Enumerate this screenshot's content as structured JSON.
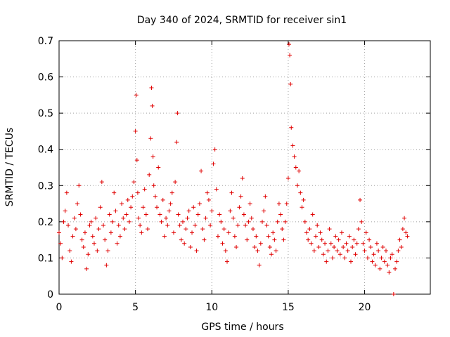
{
  "chart_data": {
    "type": "scatter",
    "title": "Day 340 of 2024, SRMTID for receiver sin1",
    "xlabel": "GPS time / hours",
    "ylabel": "SRMTID / TECUs",
    "xlim": [
      0,
      24.3
    ],
    "ylim": [
      0,
      0.7
    ],
    "x_ticks": [
      0,
      5,
      10,
      15,
      20
    ],
    "x_tick_labels": [
      "0",
      "5",
      "10",
      "15",
      "20"
    ],
    "y_ticks": [
      0,
      0.1,
      0.2,
      0.3,
      0.4,
      0.5,
      0.6,
      0.7
    ],
    "y_tick_labels": [
      "0",
      "0.1",
      "0.2",
      "0.3",
      "0.4",
      "0.5",
      "0.6",
      "0.7"
    ],
    "grid": true,
    "marker": "+",
    "color": "#e00000",
    "series": [
      {
        "name": "SRMTID",
        "x": [
          0.0,
          0.1,
          0.2,
          0.3,
          0.4,
          0.5,
          0.6,
          0.7,
          0.8,
          0.9,
          1.0,
          1.1,
          1.2,
          1.3,
          1.4,
          1.5,
          1.6,
          1.7,
          1.8,
          1.9,
          2.0,
          2.1,
          2.2,
          2.3,
          2.4,
          2.5,
          2.6,
          2.7,
          2.8,
          2.9,
          3.0,
          3.1,
          3.2,
          3.3,
          3.4,
          3.5,
          3.6,
          3.7,
          3.8,
          3.9,
          4.0,
          4.1,
          4.2,
          4.3,
          4.4,
          4.5,
          4.6,
          4.7,
          4.8,
          4.9,
          5.0,
          5.05,
          5.1,
          5.15,
          5.2,
          5.3,
          5.4,
          5.5,
          5.6,
          5.7,
          5.8,
          5.9,
          6.0,
          6.05,
          6.1,
          6.15,
          6.2,
          6.3,
          6.4,
          6.5,
          6.6,
          6.7,
          6.8,
          6.9,
          7.0,
          7.1,
          7.2,
          7.3,
          7.4,
          7.5,
          7.6,
          7.7,
          7.75,
          7.8,
          7.9,
          8.0,
          8.1,
          8.2,
          8.3,
          8.4,
          8.5,
          8.6,
          8.7,
          8.8,
          8.9,
          9.0,
          9.1,
          9.2,
          9.3,
          9.4,
          9.5,
          9.6,
          9.7,
          9.8,
          9.9,
          10.0,
          10.1,
          10.2,
          10.3,
          10.4,
          10.5,
          10.6,
          10.7,
          10.8,
          10.9,
          11.0,
          11.1,
          11.2,
          11.3,
          11.4,
          11.5,
          11.6,
          11.7,
          11.8,
          11.9,
          12.0,
          12.1,
          12.2,
          12.3,
          12.4,
          12.5,
          12.6,
          12.7,
          12.8,
          12.9,
          13.0,
          13.1,
          13.2,
          13.3,
          13.4,
          13.5,
          13.6,
          13.7,
          13.8,
          13.9,
          14.0,
          14.1,
          14.2,
          14.3,
          14.4,
          14.5,
          14.6,
          14.7,
          14.8,
          14.9,
          15.0,
          15.05,
          15.1,
          15.15,
          15.2,
          15.3,
          15.4,
          15.5,
          15.6,
          15.7,
          15.8,
          15.9,
          16.0,
          16.1,
          16.2,
          16.3,
          16.4,
          16.5,
          16.6,
          16.7,
          16.8,
          16.9,
          17.0,
          17.1,
          17.2,
          17.3,
          17.4,
          17.5,
          17.6,
          17.7,
          17.8,
          17.9,
          18.0,
          18.1,
          18.2,
          18.3,
          18.4,
          18.5,
          18.6,
          18.7,
          18.8,
          18.9,
          19.0,
          19.1,
          19.2,
          19.3,
          19.4,
          19.5,
          19.6,
          19.7,
          19.8,
          19.9,
          20.0,
          20.1,
          20.2,
          20.3,
          20.4,
          20.5,
          20.6,
          20.7,
          20.8,
          20.9,
          21.0,
          21.1,
          21.2,
          21.3,
          21.4,
          21.5,
          21.6,
          21.7,
          21.8,
          21.9,
          22.0,
          22.1,
          22.2,
          22.3,
          22.4,
          22.5,
          22.6,
          22.7,
          22.8
        ],
        "y": [
          0.17,
          0.14,
          0.1,
          0.2,
          0.23,
          0.28,
          0.19,
          0.12,
          0.09,
          0.16,
          0.21,
          0.18,
          0.25,
          0.3,
          0.22,
          0.15,
          0.13,
          0.17,
          0.07,
          0.11,
          0.19,
          0.2,
          0.16,
          0.14,
          0.21,
          0.12,
          0.18,
          0.24,
          0.31,
          0.19,
          0.15,
          0.08,
          0.12,
          0.22,
          0.17,
          0.2,
          0.28,
          0.23,
          0.14,
          0.19,
          0.16,
          0.25,
          0.21,
          0.18,
          0.22,
          0.26,
          0.2,
          0.24,
          0.27,
          0.31,
          0.45,
          0.55,
          0.37,
          0.28,
          0.21,
          0.19,
          0.17,
          0.24,
          0.29,
          0.22,
          0.18,
          0.33,
          0.43,
          0.57,
          0.52,
          0.38,
          0.3,
          0.27,
          0.24,
          0.35,
          0.22,
          0.2,
          0.26,
          0.16,
          0.21,
          0.19,
          0.23,
          0.25,
          0.28,
          0.17,
          0.31,
          0.42,
          0.5,
          0.22,
          0.19,
          0.15,
          0.2,
          0.14,
          0.18,
          0.21,
          0.23,
          0.13,
          0.17,
          0.24,
          0.19,
          0.12,
          0.22,
          0.25,
          0.34,
          0.18,
          0.15,
          0.21,
          0.28,
          0.26,
          0.19,
          0.23,
          0.36,
          0.4,
          0.29,
          0.16,
          0.22,
          0.2,
          0.14,
          0.18,
          0.12,
          0.09,
          0.17,
          0.23,
          0.28,
          0.21,
          0.16,
          0.13,
          0.19,
          0.24,
          0.27,
          0.32,
          0.22,
          0.19,
          0.15,
          0.2,
          0.25,
          0.21,
          0.18,
          0.13,
          0.16,
          0.12,
          0.08,
          0.14,
          0.2,
          0.23,
          0.27,
          0.19,
          0.16,
          0.13,
          0.11,
          0.17,
          0.15,
          0.12,
          0.2,
          0.25,
          0.22,
          0.18,
          0.15,
          0.2,
          0.25,
          0.32,
          0.69,
          0.66,
          0.58,
          0.46,
          0.41,
          0.38,
          0.35,
          0.3,
          0.34,
          0.28,
          0.24,
          0.26,
          0.2,
          0.17,
          0.15,
          0.18,
          0.14,
          0.22,
          0.12,
          0.16,
          0.19,
          0.13,
          0.17,
          0.15,
          0.11,
          0.14,
          0.09,
          0.12,
          0.18,
          0.14,
          0.1,
          0.13,
          0.16,
          0.12,
          0.15,
          0.11,
          0.17,
          0.13,
          0.1,
          0.14,
          0.12,
          0.16,
          0.09,
          0.13,
          0.15,
          0.11,
          0.14,
          0.18,
          0.26,
          0.2,
          0.14,
          0.12,
          0.17,
          0.1,
          0.15,
          0.13,
          0.09,
          0.11,
          0.08,
          0.14,
          0.12,
          0.07,
          0.1,
          0.13,
          0.09,
          0.12,
          0.08,
          0.06,
          0.1,
          0.11,
          0.0,
          0.07,
          0.09,
          0.12,
          0.15,
          0.13,
          0.18,
          0.21,
          0.17,
          0.16
        ]
      }
    ]
  }
}
